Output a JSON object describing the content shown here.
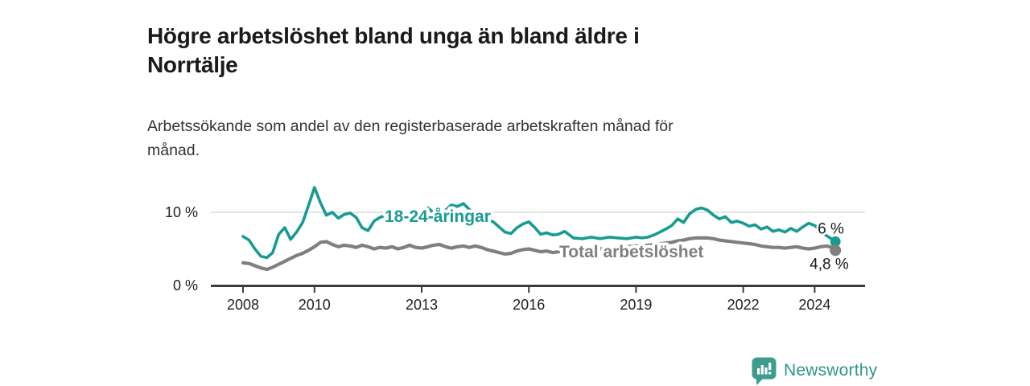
{
  "header": {
    "title_lines": [
      "Högre arbetslöshet bland unga än bland äldre i",
      "Norrtälje"
    ],
    "subtitle_lines": [
      "Arbetssökande som andel av den registerbaserade arbetskraften månad för",
      "månad."
    ]
  },
  "colors": {
    "young_line": "#189b92",
    "total_line": "#7f7f7f",
    "end_label_text": "#1a1a1a",
    "axis": "#3b3b3b",
    "grid": "#dcdcdc",
    "brand_teal": "#2e968c"
  },
  "chart_data": {
    "type": "line",
    "title": "Högre arbetslöshet bland unga än bland äldre i Norrtälje",
    "subtitle": "Arbetssökande som andel av den registerbaserade arbetskraften månad för månad.",
    "xlabel": "",
    "ylabel": "",
    "grid": "horizontal line at 10% only",
    "legend_position": "inline labels on lines",
    "xlim": [
      2007.1,
      2025.4
    ],
    "ylim": [
      0,
      14
    ],
    "x_ticks": [
      2008,
      2010,
      2013,
      2016,
      2019,
      2022,
      2024
    ],
    "y_ticks": [
      {
        "value": 0,
        "label": "0 %"
      },
      {
        "value": 10,
        "label": "10 %"
      }
    ],
    "x": [
      2008,
      2008.17,
      2008.33,
      2008.5,
      2008.67,
      2008.83,
      2009,
      2009.17,
      2009.33,
      2009.5,
      2009.67,
      2009.83,
      2010,
      2010.17,
      2010.33,
      2010.5,
      2010.67,
      2010.83,
      2011,
      2011.17,
      2011.33,
      2011.5,
      2011.67,
      2011.83,
      2012,
      2012.17,
      2012.33,
      2012.5,
      2012.67,
      2012.83,
      2013,
      2013.17,
      2013.33,
      2013.5,
      2013.67,
      2013.83,
      2014,
      2014.17,
      2014.33,
      2014.5,
      2014.67,
      2014.83,
      2015,
      2015.17,
      2015.33,
      2015.5,
      2015.67,
      2015.83,
      2016,
      2016.17,
      2016.33,
      2016.5,
      2016.67,
      2016.83,
      2017,
      2017.25,
      2017.5,
      2017.75,
      2018,
      2018.25,
      2018.5,
      2018.75,
      2019,
      2019.17,
      2019.33,
      2019.5,
      2019.67,
      2019.83,
      2020,
      2020.17,
      2020.33,
      2020.5,
      2020.67,
      2020.83,
      2021,
      2021.17,
      2021.33,
      2021.5,
      2021.67,
      2021.83,
      2022,
      2022.17,
      2022.33,
      2022.5,
      2022.67,
      2022.83,
      2023,
      2023.17,
      2023.33,
      2023.5,
      2023.67,
      2023.83,
      2024,
      2024.17,
      2024.33,
      2024.5,
      2024.58
    ],
    "series": [
      {
        "name": "18-24-åringar",
        "color": "#189b92",
        "end_label": "6 %",
        "end_value": 6.0,
        "values": [
          6.7,
          6.2,
          5.0,
          4.0,
          3.8,
          4.5,
          7.0,
          7.9,
          6.3,
          7.3,
          8.6,
          10.9,
          13.4,
          11.3,
          9.6,
          10.0,
          9.2,
          9.7,
          9.9,
          9.3,
          7.9,
          7.5,
          8.8,
          9.3,
          9.6,
          9.9,
          9.4,
          9.8,
          9.5,
          9.9,
          10.2,
          10.6,
          10.0,
          9.7,
          10.3,
          11.0,
          10.8,
          11.2,
          10.4,
          9.8,
          9.3,
          9.0,
          8.7,
          8.0,
          7.3,
          7.1,
          7.9,
          8.4,
          8.7,
          7.9,
          7.0,
          7.2,
          6.9,
          7.0,
          7.4,
          6.5,
          6.4,
          6.6,
          6.4,
          6.6,
          6.5,
          6.4,
          6.6,
          6.5,
          6.6,
          6.9,
          7.3,
          7.7,
          8.2,
          9.1,
          8.6,
          9.8,
          10.4,
          10.6,
          10.3,
          9.6,
          9.1,
          9.4,
          8.6,
          8.8,
          8.5,
          8.1,
          8.3,
          7.7,
          8.0,
          7.4,
          7.6,
          7.3,
          7.8,
          7.4,
          8.0,
          8.5,
          8.2,
          7.5,
          6.8,
          6.3,
          6.0
        ]
      },
      {
        "name": "Total arbetslöshet",
        "color": "#7f7f7f",
        "end_label": "4,8 %",
        "end_value": 4.8,
        "values": [
          3.1,
          3.0,
          2.7,
          2.4,
          2.2,
          2.5,
          2.9,
          3.3,
          3.7,
          4.1,
          4.4,
          4.8,
          5.3,
          5.9,
          6.0,
          5.6,
          5.3,
          5.5,
          5.4,
          5.2,
          5.5,
          5.3,
          5.0,
          5.2,
          5.1,
          5.3,
          5.0,
          5.2,
          5.5,
          5.2,
          5.1,
          5.3,
          5.5,
          5.6,
          5.3,
          5.1,
          5.3,
          5.4,
          5.2,
          5.4,
          5.2,
          4.9,
          4.7,
          4.5,
          4.3,
          4.4,
          4.7,
          4.9,
          5.0,
          4.8,
          4.6,
          4.7,
          4.5,
          4.6,
          4.7,
          4.8,
          4.9,
          5.0,
          5.0,
          5.1,
          5.2,
          5.3,
          5.4,
          5.4,
          5.5,
          5.6,
          5.7,
          5.8,
          5.9,
          6.1,
          6.2,
          6.4,
          6.5,
          6.5,
          6.5,
          6.4,
          6.2,
          6.1,
          6.0,
          5.9,
          5.8,
          5.7,
          5.6,
          5.4,
          5.3,
          5.2,
          5.2,
          5.1,
          5.2,
          5.3,
          5.1,
          5.0,
          5.1,
          5.3,
          5.4,
          5.2,
          4.8
        ]
      }
    ]
  },
  "footer": {
    "brand": "Newsworthy"
  }
}
